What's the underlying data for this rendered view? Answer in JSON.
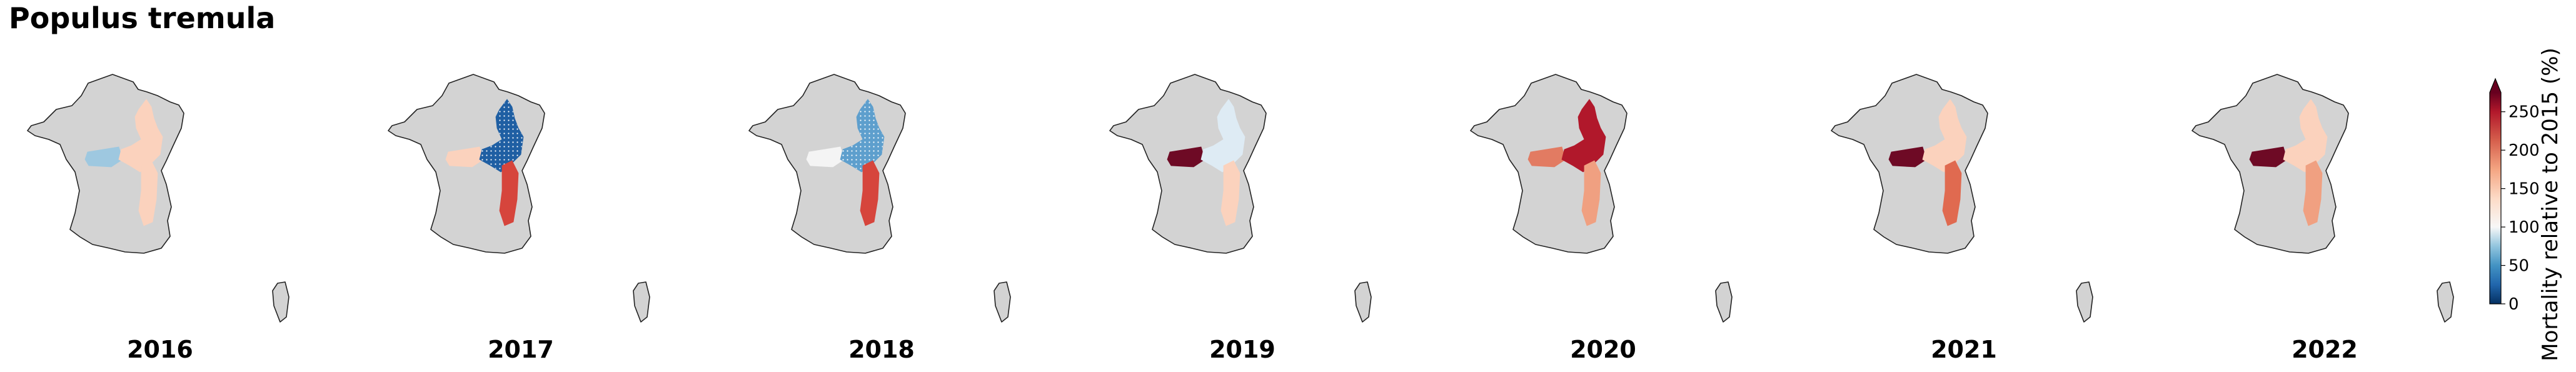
{
  "title": "Populus tremula",
  "colors": {
    "france_fill": "#d3d3d3",
    "france_stroke": "#222222",
    "background": "#ffffff",
    "hatch": "#ffffff"
  },
  "regions": [
    "west-centre",
    "north-east",
    "east"
  ],
  "panels": [
    {
      "year": "2016",
      "regions": [
        {
          "region": "west-centre",
          "color": "#9ec8e0",
          "hatched": false
        },
        {
          "region": "north-east",
          "color": "#fbd2bd",
          "hatched": false
        },
        {
          "region": "east",
          "color": "#fbd2bd",
          "hatched": false
        }
      ]
    },
    {
      "year": "2017",
      "regions": [
        {
          "region": "west-centre",
          "color": "#fbd2bd",
          "hatched": false
        },
        {
          "region": "north-east",
          "color": "#1f5fa3",
          "hatched": true
        },
        {
          "region": "east",
          "color": "#d6453c",
          "hatched": false
        }
      ]
    },
    {
      "year": "2018",
      "regions": [
        {
          "region": "west-centre",
          "color": "#f4f4f4",
          "hatched": false
        },
        {
          "region": "north-east",
          "color": "#5e9fcd",
          "hatched": true
        },
        {
          "region": "east",
          "color": "#d6453c",
          "hatched": false
        }
      ]
    },
    {
      "year": "2019",
      "regions": [
        {
          "region": "west-centre",
          "color": "#6e0a25",
          "hatched": false
        },
        {
          "region": "north-east",
          "color": "#deebf4",
          "hatched": false
        },
        {
          "region": "east",
          "color": "#fbd2bd",
          "hatched": false
        }
      ]
    },
    {
      "year": "2020",
      "regions": [
        {
          "region": "west-centre",
          "color": "#e27b62",
          "hatched": false
        },
        {
          "region": "north-east",
          "color": "#b1182b",
          "hatched": false
        },
        {
          "region": "east",
          "color": "#f0a081",
          "hatched": false
        }
      ]
    },
    {
      "year": "2021",
      "regions": [
        {
          "region": "west-centre",
          "color": "#6e0a25",
          "hatched": false
        },
        {
          "region": "north-east",
          "color": "#fbd2bd",
          "hatched": false
        },
        {
          "region": "east",
          "color": "#e06a50",
          "hatched": false
        }
      ]
    },
    {
      "year": "2022",
      "regions": [
        {
          "region": "west-centre",
          "color": "#6e0a25",
          "hatched": false
        },
        {
          "region": "north-east",
          "color": "#fbd2bd",
          "hatched": false
        },
        {
          "region": "east",
          "color": "#f0a081",
          "hatched": false
        }
      ]
    }
  ],
  "colorbar": {
    "label": "Mortality relative to 2015 (%)",
    "min": 0,
    "max": 275,
    "extend": "max",
    "ticks": [
      "0",
      "50",
      "100",
      "150",
      "200",
      "250"
    ],
    "tick_values": [
      0,
      50,
      100,
      150,
      200,
      250
    ],
    "stops": [
      {
        "value": 0,
        "color": "#053061"
      },
      {
        "value": 25,
        "color": "#2166ac"
      },
      {
        "value": 50,
        "color": "#4393c3"
      },
      {
        "value": 75,
        "color": "#92c5de"
      },
      {
        "value": 100,
        "color": "#f7f7f7"
      },
      {
        "value": 137,
        "color": "#fddbc7"
      },
      {
        "value": 175,
        "color": "#f4a582"
      },
      {
        "value": 212,
        "color": "#d6604d"
      },
      {
        "value": 250,
        "color": "#b2182b"
      },
      {
        "value": 275,
        "color": "#67001f"
      }
    ],
    "extend_color": "#67001f"
  }
}
